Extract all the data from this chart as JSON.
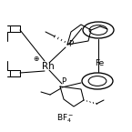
{
  "bg_color": "#ffffff",
  "line_color": "#000000",
  "text_color": "#000000",
  "figsize": [
    1.45,
    1.45
  ],
  "dpi": 100,
  "rh_label": "Rh",
  "fe_label": "Fe",
  "p1_label": "P",
  "p2_label": "P",
  "bf4_label": "BF$_4^-$",
  "plus_label": "⊕"
}
